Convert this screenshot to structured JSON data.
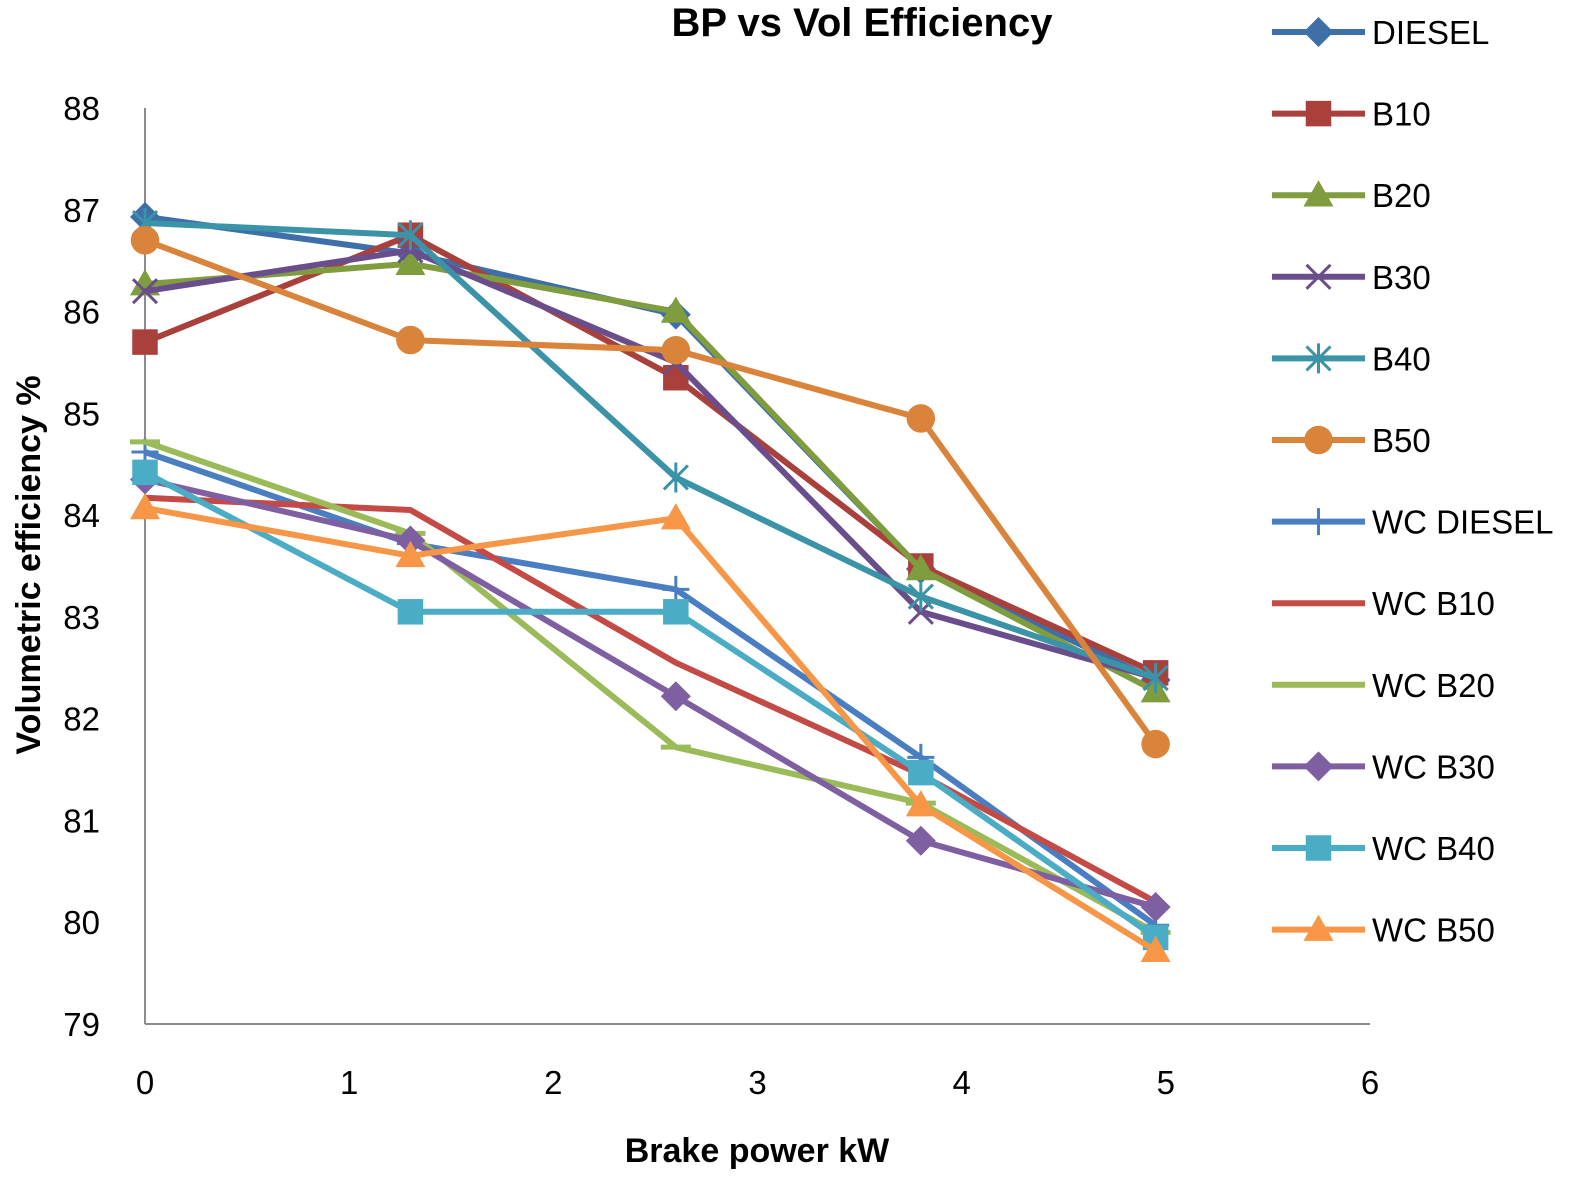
{
  "chart_data": {
    "type": "line",
    "title": "BP vs Vol Efficiency",
    "xlabel": "Brake power kW",
    "ylabel": "Volumetric efficiency %",
    "xlim": [
      0,
      6
    ],
    "ylim": [
      79,
      88
    ],
    "xticks": [
      "0",
      "1",
      "2",
      "3",
      "4",
      "5",
      "6"
    ],
    "yticks": [
      "79",
      "80",
      "81",
      "82",
      "83",
      "84",
      "85",
      "86",
      "87",
      "88"
    ],
    "grid": false,
    "legend": "right",
    "x": [
      0,
      1.3,
      2.6,
      3.8,
      4.95
    ],
    "series": [
      {
        "name": "DIESEL",
        "color": "#3F6FA8",
        "marker": "diamond",
        "values": [
          86.93,
          86.57,
          85.97,
          83.47,
          82.38
        ]
      },
      {
        "name": "B10",
        "color": "#A9403C",
        "marker": "square",
        "values": [
          85.7,
          86.75,
          85.35,
          83.5,
          82.45
        ]
      },
      {
        "name": "B20",
        "color": "#7F9C3F",
        "marker": "triangle",
        "values": [
          86.27,
          86.47,
          86.0,
          83.47,
          82.27
        ]
      },
      {
        "name": "B30",
        "color": "#6A4E8C",
        "marker": "x",
        "values": [
          86.2,
          86.6,
          85.5,
          83.05,
          82.4
        ]
      },
      {
        "name": "B40",
        "color": "#3B93A8",
        "marker": "star",
        "values": [
          86.87,
          86.75,
          84.37,
          83.2,
          82.4
        ]
      },
      {
        "name": "B50",
        "color": "#D9843A",
        "marker": "circle",
        "values": [
          86.7,
          85.72,
          85.62,
          84.95,
          81.75
        ]
      },
      {
        "name": "WC DIESEL",
        "color": "#4A7EC2",
        "marker": "plus",
        "values": [
          84.62,
          83.72,
          83.27,
          81.62,
          79.97
        ]
      },
      {
        "name": "WC B10",
        "color": "#C44A46",
        "marker": "none",
        "values": [
          84.17,
          84.05,
          82.55,
          81.45,
          80.2
        ]
      },
      {
        "name": "WC B20",
        "color": "#9BBB59",
        "marker": "dash",
        "values": [
          84.72,
          83.82,
          81.72,
          81.17,
          79.9
        ]
      },
      {
        "name": "WC B30",
        "color": "#7E5FA2",
        "marker": "diamond",
        "values": [
          84.35,
          83.75,
          82.22,
          80.8,
          80.15
        ]
      },
      {
        "name": "WC B40",
        "color": "#4BACC6",
        "marker": "square",
        "values": [
          84.42,
          83.05,
          83.05,
          81.47,
          79.85
        ]
      },
      {
        "name": "WC B50",
        "color": "#F79646",
        "marker": "triangle",
        "values": [
          84.07,
          83.6,
          83.97,
          81.15,
          79.72
        ]
      }
    ]
  }
}
